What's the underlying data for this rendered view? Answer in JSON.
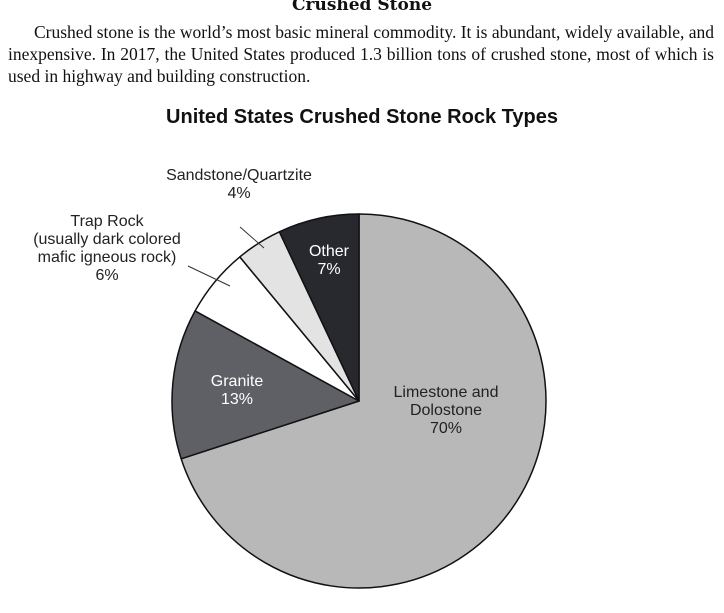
{
  "document": {
    "heading": "Crushed Stone",
    "paragraph": "Crushed stone is the world’s most basic mineral commodity. It is abundant, widely available, and inexpensive. In 2017, the United States produced 1.3 billion tons of crushed stone, most of which is used in highway and building construction."
  },
  "chart_data": {
    "type": "pie",
    "title": "United States Crushed Stone Rock Types",
    "slices": [
      {
        "label": [
          "Limestone and",
          "Dolostone"
        ],
        "value": 70,
        "display": "70%",
        "color": "#b8b8b8",
        "text_color": "#222222"
      },
      {
        "label": [
          "Granite"
        ],
        "value": 13,
        "display": "13%",
        "color": "#5f6065",
        "text_color": "#ffffff"
      },
      {
        "label": [
          "Trap Rock",
          "(usually dark colored",
          "mafic igneous rock)"
        ],
        "value": 6,
        "display": "6%",
        "color": "#ffffff",
        "text_color": "#222222"
      },
      {
        "label": [
          "Sandstone/Quartzite"
        ],
        "value": 4,
        "display": "4%",
        "color": "#e3e3e3",
        "text_color": "#222222"
      },
      {
        "label": [
          "Other"
        ],
        "value": 7,
        "display": "7%",
        "color": "#28292e",
        "text_color": "#ffffff"
      }
    ]
  }
}
